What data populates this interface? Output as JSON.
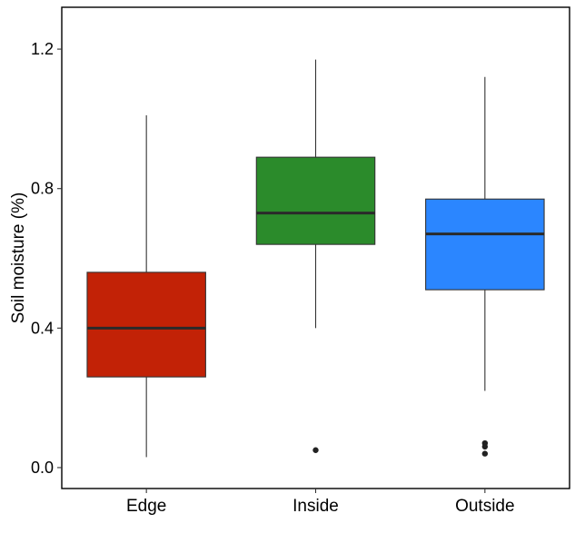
{
  "chart_data": {
    "type": "boxplot",
    "title": "",
    "xlabel": "",
    "ylabel": "Soil moisture (%)",
    "ylim": [
      -0.06,
      1.32
    ],
    "yticks": [
      0.0,
      0.4,
      0.8,
      1.2
    ],
    "ytick_labels": [
      "0.0",
      "0.4",
      "0.8",
      "1.2"
    ],
    "categories": [
      "Edge",
      "Inside",
      "Outside"
    ],
    "boxes": [
      {
        "name": "Edge",
        "color": "#c22206",
        "whisker_low": 0.03,
        "q1": 0.26,
        "median": 0.4,
        "q3": 0.56,
        "whisker_high": 1.01,
        "outliers": []
      },
      {
        "name": "Inside",
        "color": "#2b8b2b",
        "whisker_low": 0.4,
        "q1": 0.64,
        "median": 0.73,
        "q3": 0.89,
        "whisker_high": 1.17,
        "outliers": [
          0.05
        ]
      },
      {
        "name": "Outside",
        "color": "#2b86ff",
        "whisker_low": 0.22,
        "q1": 0.51,
        "median": 0.67,
        "q3": 0.77,
        "whisker_high": 1.12,
        "outliers": [
          0.07,
          0.06,
          0.04
        ]
      }
    ],
    "grid": false,
    "legend": "none"
  }
}
